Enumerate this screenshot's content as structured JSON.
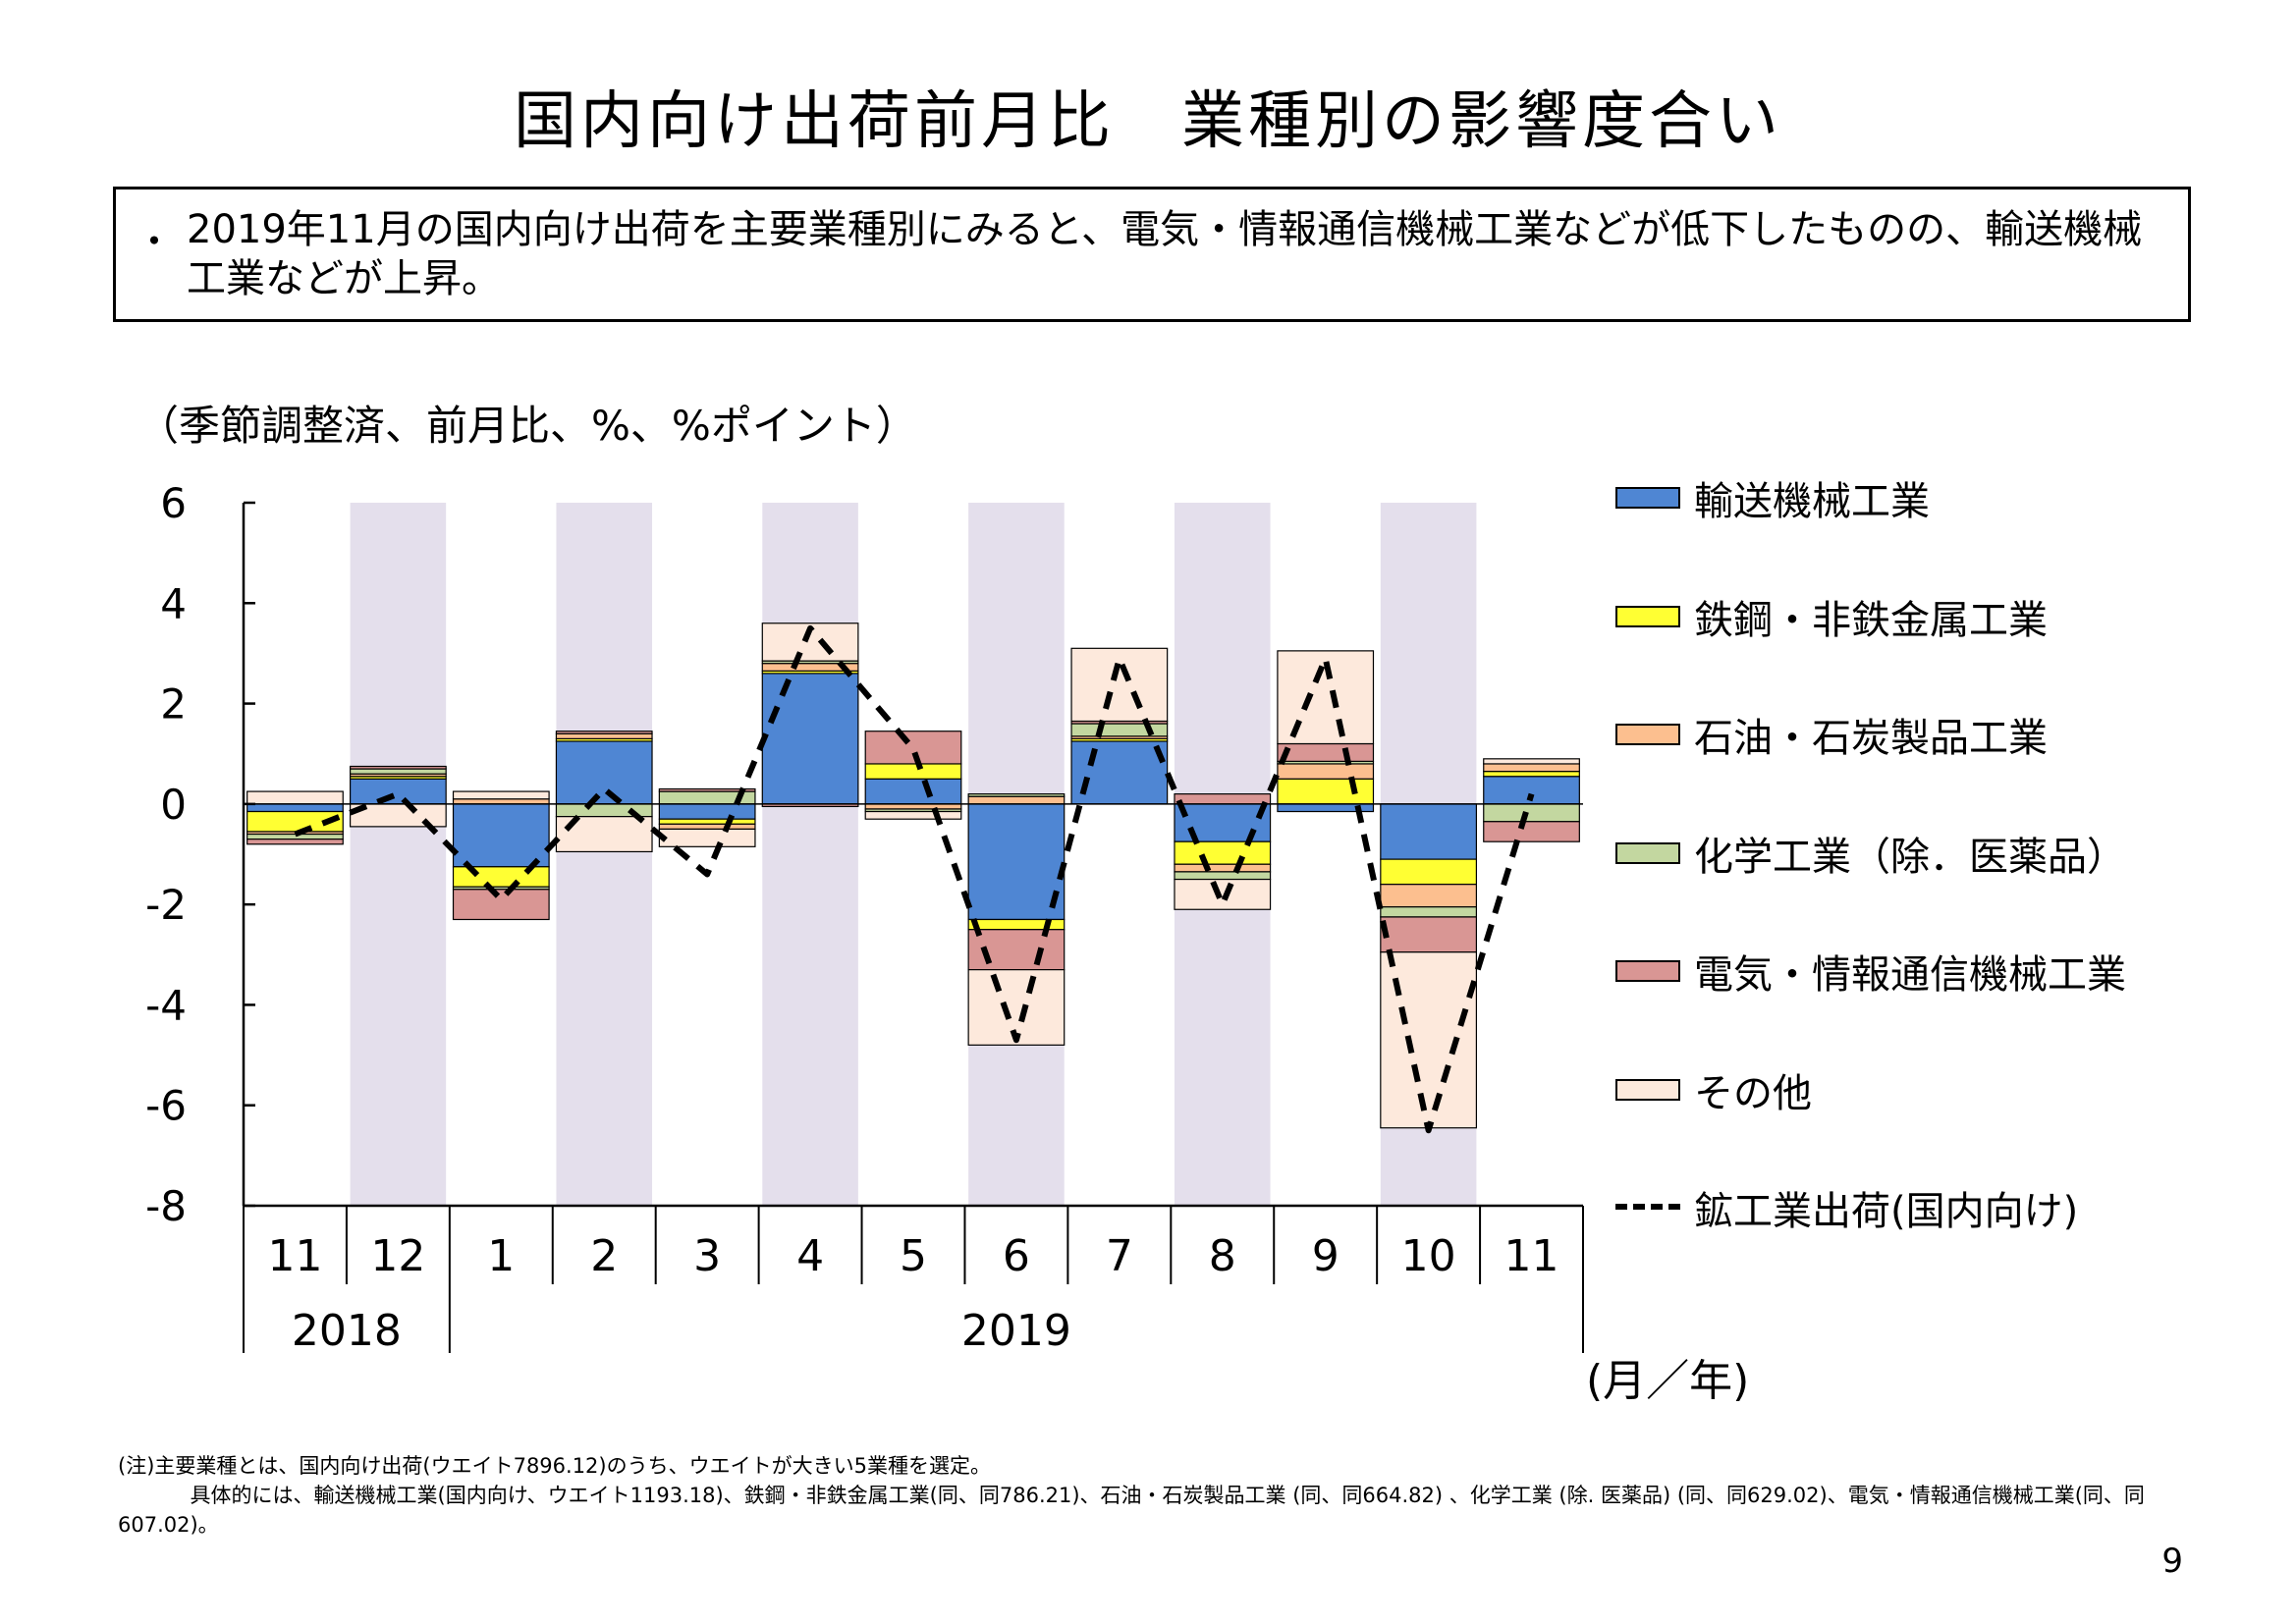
{
  "title": "国内向け出荷前月比　業種別の影響度合い",
  "summary": {
    "bullet": "・",
    "text": "2019年11月の国内向け出荷を主要業種別にみると、電気・情報通信機械工業などが低下したものの、輸送機械工業などが上昇。"
  },
  "unit_label": "（季節調整済、前月比、%、%ポイント）",
  "axis_unit_label": "(月／年)",
  "footnote": {
    "line1": "(注)主要業種とは、国内向け出荷(ウエイト7896.12)のうち、ウエイトが大きい5業種を選定。",
    "line2": "具体的には、輸送機械工業(国内向け、ウエイト1193.18)、鉄鋼・非鉄金属工業(同、同786.21)、石油・石炭製品工業 (同、同664.82) 、化学工業 (除. 医薬品) (同、同629.02)、電気・情報通信機械工業(同、同607.02)。"
  },
  "page_number": "9",
  "colors": {
    "transport": "#4f86d3",
    "steel": "#ffff33",
    "petroleum": "#fcbf8f",
    "chemical": "#c3d7a0",
    "electric": "#d99694",
    "other": "#fde9dc",
    "shade": "#e4dfec",
    "line": "#000000"
  },
  "chart_data": {
    "type": "bar",
    "stacked": true,
    "categories": [
      "11",
      "12",
      "1",
      "2",
      "3",
      "4",
      "5",
      "6",
      "7",
      "8",
      "9",
      "10",
      "11"
    ],
    "year_labels": [
      {
        "label": "2018",
        "from": 0,
        "to": 1
      },
      {
        "label": "2019",
        "from": 2,
        "to": 12
      }
    ],
    "ylim": [
      -8,
      6
    ],
    "yticks": [
      "6",
      "4",
      "2",
      "0",
      "-2",
      "-4",
      "-6",
      "-8"
    ],
    "shaded_categories": [
      1,
      3,
      5,
      7,
      9,
      11
    ],
    "series": [
      {
        "name": "輸送機械工業",
        "key": "transport",
        "values": [
          -0.15,
          0.5,
          -1.25,
          1.25,
          -0.3,
          2.6,
          0.5,
          -2.3,
          1.25,
          -0.75,
          -0.15,
          -1.1,
          0.55
        ]
      },
      {
        "name": "鉄鋼・非鉄金属工業",
        "key": "steel",
        "values": [
          -0.4,
          0.05,
          -0.4,
          0.05,
          -0.1,
          0.05,
          0.3,
          -0.2,
          0.05,
          -0.45,
          0.5,
          -0.5,
          0.1
        ]
      },
      {
        "name": "石油・石炭製品工業",
        "key": "petroleum",
        "values": [
          -0.05,
          0.05,
          0.1,
          0.1,
          -0.1,
          0.15,
          -0.1,
          0.15,
          0.05,
          -0.15,
          0.3,
          -0.45,
          0.15
        ]
      },
      {
        "name": "化学工業（除. 医薬品）",
        "key": "chemical",
        "values": [
          -0.1,
          0.1,
          -0.05,
          -0.25,
          0.25,
          0.05,
          -0.05,
          0.05,
          0.25,
          -0.15,
          0.05,
          -0.2,
          -0.35
        ]
      },
      {
        "name": "電気・情報通信機械工業",
        "key": "electric",
        "values": [
          -0.1,
          0.05,
          -0.6,
          0.05,
          0.05,
          -0.05,
          0.65,
          -0.8,
          0.05,
          0.2,
          0.35,
          -0.7,
          -0.4
        ]
      },
      {
        "name": "その他",
        "key": "other",
        "values": [
          0.25,
          -0.45,
          0.15,
          -0.7,
          -0.35,
          0.75,
          -0.15,
          -1.5,
          1.45,
          -0.6,
          1.85,
          -3.5,
          0.1
        ]
      }
    ],
    "line_series": {
      "name": "鉱工業出荷（国内向け）",
      "values": [
        -0.6,
        0.2,
        -1.9,
        0.3,
        -1.4,
        3.5,
        1.1,
        -4.7,
        2.9,
        -2.0,
        2.9,
        -6.5,
        0.2
      ]
    },
    "legend_position": "right"
  },
  "legend": [
    {
      "label": "輸送機械工業",
      "key": "transport",
      "kind": "bar"
    },
    {
      "label": "鉄鋼・非鉄金属工業",
      "key": "steel",
      "kind": "bar"
    },
    {
      "label": "石油・石炭製品工業",
      "key": "petroleum",
      "kind": "bar"
    },
    {
      "label": "化学工業（除．医薬品）",
      "key": "chemical",
      "kind": "bar"
    },
    {
      "label": "電気・情報通信機械工業",
      "key": "electric",
      "kind": "bar"
    },
    {
      "label": "その他",
      "key": "other",
      "kind": "bar"
    },
    {
      "label": "鉱工業出荷(国内向け)",
      "key": "line",
      "kind": "line"
    }
  ]
}
